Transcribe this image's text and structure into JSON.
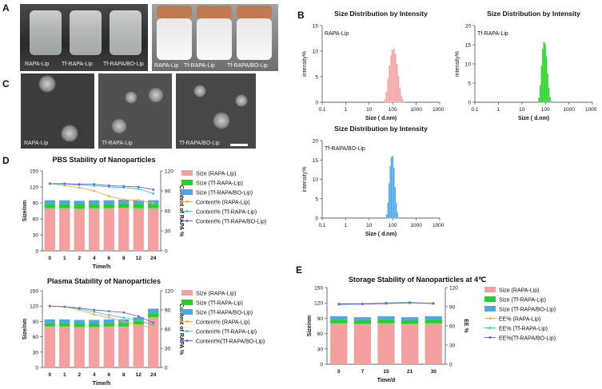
{
  "panel_letters": {
    "a": "A",
    "b": "B",
    "c": "C",
    "d": "D",
    "e": "E"
  },
  "panel_a": {
    "left_labels": [
      "RAPA-Lip",
      "Tf-RAPA-Lip",
      "Tf-RAPA/BO-Lip"
    ],
    "right_labels": [
      "RAPA-Lip",
      "Tf-RAPA-Lip",
      "Tf-RAPA/BO-Lip"
    ]
  },
  "panel_c": {
    "labels": [
      "RAPA-Lip",
      "Tf-RAPA-Lip",
      "Tf-RAPA/BO-Lip"
    ]
  },
  "colors": {
    "rapa": "#f4a0a0",
    "tf": "#22d422",
    "bo": "#4da6e8",
    "line_rapa": "#f5b041",
    "line_tf": "#48c9b0",
    "line_bo": "#6c63d9"
  },
  "chart_data": [
    {
      "id": "dls1",
      "type": "bar",
      "title": "Size Distribution by Intensity",
      "series_label": "RAPA-Lip",
      "xlabel": "Size  ( d.nm)",
      "ylabel": "intensity%",
      "xscale": "log",
      "xlim": [
        0.1,
        10000
      ],
      "ylim": [
        0,
        15
      ],
      "xticks": [
        "0.1",
        "1",
        "10",
        "100",
        "1000",
        "10000"
      ],
      "yticks": [
        "0",
        "5",
        "10",
        "15"
      ],
      "x": [
        42,
        50,
        59,
        68,
        79,
        91,
        106,
        122,
        142,
        164,
        190,
        220,
        255,
        295
      ],
      "values": [
        0.6,
        2.1,
        4.6,
        7.2,
        9.2,
        10.3,
        10.5,
        9.5,
        7.5,
        5.1,
        2.9,
        1.3,
        0.5,
        0.1
      ],
      "color": "#f4a0a0"
    },
    {
      "id": "dls2",
      "type": "bar",
      "title": "Size Distribution by Intensity",
      "series_label": "Tf-RAPA-Lip",
      "xlabel": "Size  ( d.nm)",
      "ylabel": "intensity%",
      "xscale": "log",
      "xlim": [
        0.1,
        10000
      ],
      "ylim": [
        0,
        20
      ],
      "xticks": [
        "0.1",
        "1",
        "10",
        "100",
        "1000",
        "10000"
      ],
      "yticks": [
        "0",
        "5",
        "10",
        "15",
        "20"
      ],
      "x": [
        50,
        57,
        64,
        72,
        81,
        91,
        103,
        116,
        130,
        146,
        165
      ],
      "values": [
        1.2,
        4.5,
        9.5,
        14.0,
        15.8,
        15.2,
        12.0,
        7.5,
        3.8,
        1.4,
        0.3
      ],
      "color": "#22d422"
    },
    {
      "id": "dls3",
      "type": "bar",
      "title": "Size Distribution by Intensity",
      "series_label": "Tf-RAPA/BO-Lip",
      "xlabel": "Size  ( d.nm)",
      "ylabel": "intensity%",
      "xscale": "log",
      "xlim": [
        0.1,
        10000
      ],
      "ylim": [
        0,
        20
      ],
      "xticks": [
        "0.1",
        "1",
        "10",
        "100",
        "1000",
        "10000"
      ],
      "yticks": [
        "0",
        "5",
        "10",
        "15",
        "20"
      ],
      "x": [
        52,
        59,
        66,
        74,
        83,
        93,
        104,
        117,
        131,
        147,
        165
      ],
      "values": [
        1.0,
        4.0,
        9.0,
        13.5,
        15.8,
        16.0,
        13.0,
        8.0,
        4.0,
        1.5,
        0.3
      ],
      "color": "#4da6e8"
    },
    {
      "id": "pbs",
      "type": "bar",
      "title": "PBS Stability of Nanoparticles",
      "xlabel": "Time/h",
      "ylabel": "Size/nm",
      "y2label": "Content of RAPA %",
      "categories": [
        "0",
        "1",
        "2",
        "4",
        "6",
        "8",
        "12",
        "24"
      ],
      "ylim": [
        0,
        150
      ],
      "yticks": [
        "0",
        "30",
        "60",
        "90",
        "120",
        "150"
      ],
      "y2lim": [
        0,
        120
      ],
      "y2ticks": [
        "0",
        "30",
        "60",
        "90",
        "120"
      ],
      "series": [
        {
          "name": "Size  (RAPA-Lip)",
          "values": [
            80,
            80,
            79,
            80,
            80,
            81,
            80,
            80
          ]
        },
        {
          "name": "Size  (Tf-RAPA-Lip)",
          "values": [
            8,
            8,
            8,
            8,
            8,
            8,
            8,
            8
          ]
        },
        {
          "name": "Size  (Tf-RAPA/BO-Lip)",
          "values": [
            7,
            7,
            7,
            7,
            7,
            7,
            7,
            7
          ]
        }
      ],
      "lines": [
        {
          "name": "Content%  (RAPA-Lip)",
          "values": [
            101,
            98,
            95,
            90,
            82,
            77,
            76,
            72
          ]
        },
        {
          "name": "Content%  (Tf-RAPA-Lip)",
          "values": [
            101,
            100,
            99,
            98,
            96,
            95,
            93,
            86
          ]
        },
        {
          "name": "Content%  (Tf-RAPA/BO-Lip)",
          "values": [
            101,
            101,
            100,
            100,
            98,
            97,
            96,
            92
          ]
        }
      ]
    },
    {
      "id": "plasma",
      "type": "bar",
      "title": "Plasma Stability of Nanoparticles",
      "xlabel": "Time/h",
      "ylabel": "Size/nm",
      "y2label": "Content of RAPA %",
      "categories": [
        "0",
        "1",
        "2",
        "4",
        "6",
        "8",
        "12",
        "24"
      ],
      "ylim": [
        0,
        150
      ],
      "yticks": [
        "0",
        "30",
        "60",
        "90",
        "120",
        "150"
      ],
      "y2lim": [
        0,
        120
      ],
      "y2ticks": [
        "0",
        "30",
        "60",
        "90",
        "120"
      ],
      "series": [
        {
          "name": "Size  (RAPA-Lip)",
          "values": [
            80,
            80,
            79,
            79,
            80,
            80,
            84,
            98
          ]
        },
        {
          "name": "Size  (Tf-RAPA-Lip)",
          "values": [
            7,
            7,
            7,
            7,
            7,
            7,
            7,
            8
          ]
        },
        {
          "name": "Size  (Tf-RAPA/BO-Lip)",
          "values": [
            7,
            7,
            7,
            7,
            7,
            7,
            7,
            9
          ]
        }
      ],
      "lines": [
        {
          "name": "Content%  (RAPA-Lip)",
          "values": [
            96,
            95,
            90,
            83,
            78,
            72,
            66,
            62
          ]
        },
        {
          "name": "Content%  (Tf-RAPA-Lip)",
          "values": [
            96,
            95,
            92,
            87,
            82,
            78,
            74,
            66
          ]
        },
        {
          "name": "Content%(Tf-RAPA/BO-Lip)",
          "values": [
            96,
            95,
            93,
            90,
            88,
            86,
            80,
            70
          ]
        }
      ]
    },
    {
      "id": "storage",
      "type": "bar",
      "title": "Storage Stability of Nanoparticles at 4℃",
      "xlabel": "Time/d",
      "ylabel": "Size/nm",
      "y2label": "EE %",
      "categories": [
        "0",
        "7",
        "15",
        "21",
        "30"
      ],
      "ylim": [
        0,
        150
      ],
      "yticks": [
        "0",
        "30",
        "60",
        "90",
        "120",
        "150"
      ],
      "y2lim": [
        0,
        120
      ],
      "y2ticks": [
        "0",
        "30",
        "60",
        "90",
        "120"
      ],
      "series": [
        {
          "name": "Size  (RAPA-Lip)",
          "values": [
            80,
            79,
            80,
            79,
            80
          ]
        },
        {
          "name": "Size  (Tf-RAPA-Lip)",
          "values": [
            7,
            7,
            7,
            7,
            7
          ]
        },
        {
          "name": "Size  (Tf-RAPA/BO-Lip)",
          "values": [
            7,
            6,
            7,
            6,
            7
          ]
        }
      ],
      "lines": [
        {
          "name": "EE%  (RAPA-Lip)",
          "values": [
            93,
            94,
            96,
            96,
            96
          ]
        },
        {
          "name": "EE%  (Tf-RAPA-Lip)",
          "values": [
            95,
            95,
            96,
            97,
            95
          ]
        },
        {
          "name": "EE%(Tf-RAPA/BO-Lip)",
          "values": [
            94,
            94,
            95,
            96,
            95
          ]
        }
      ]
    }
  ]
}
